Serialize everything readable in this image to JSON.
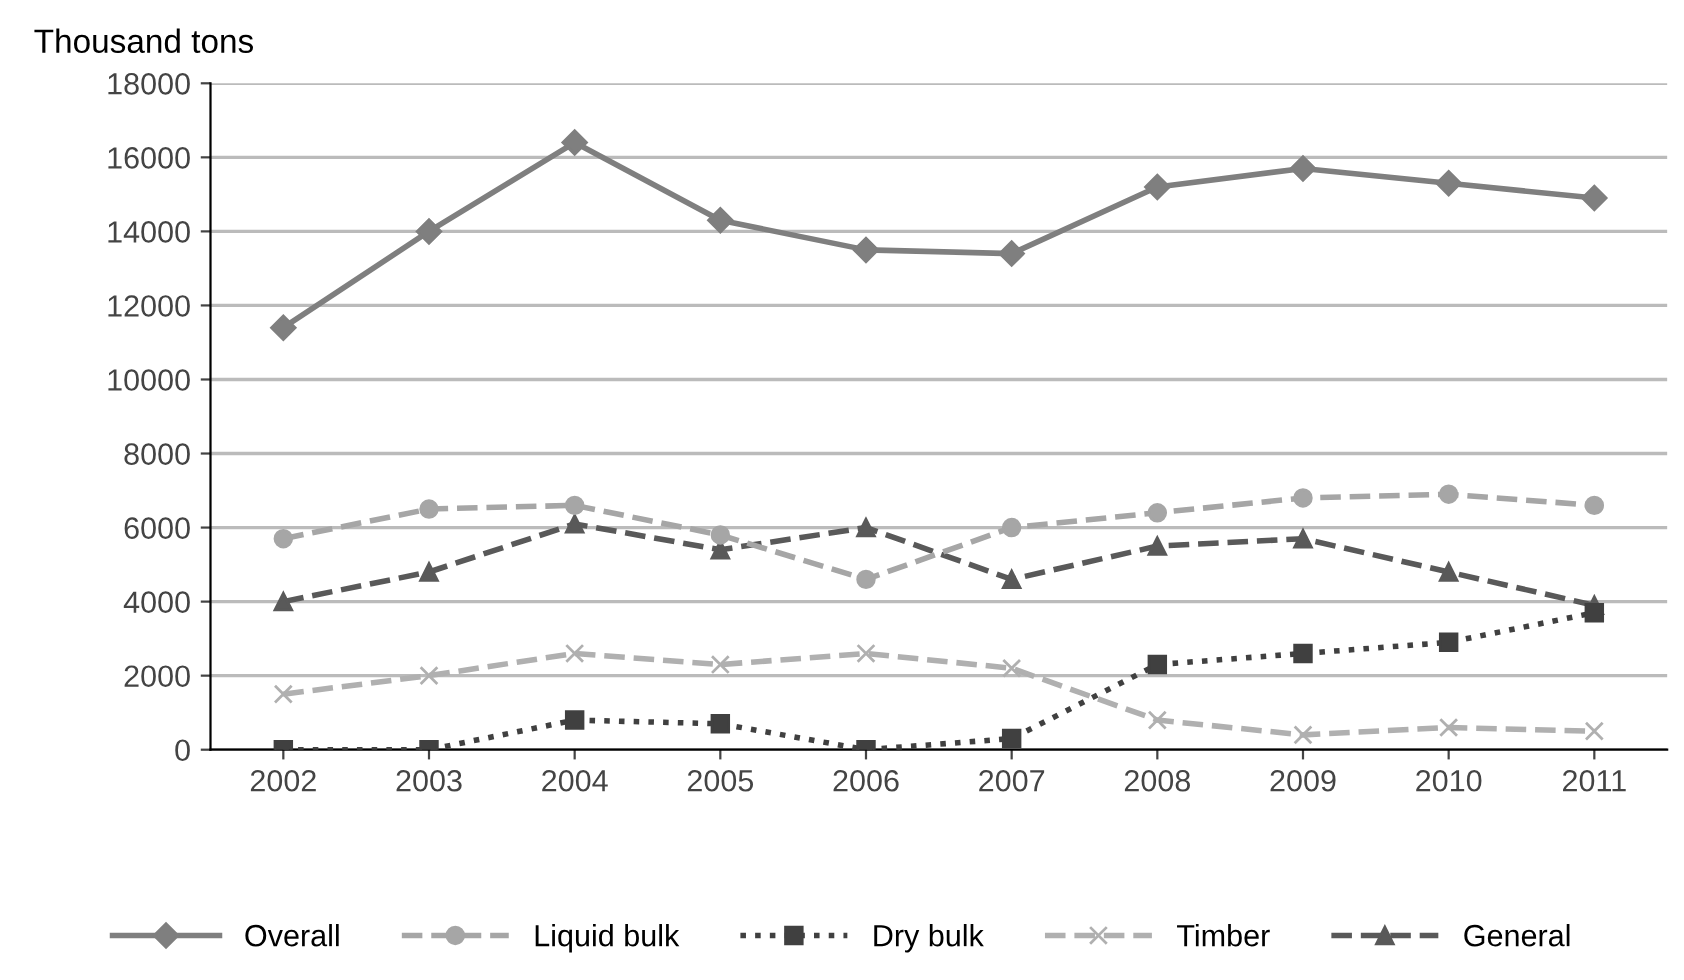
{
  "chart_data": {
    "type": "line",
    "ylabel": "Thousand tons",
    "categories": [
      "2002",
      "2003",
      "2004",
      "2005",
      "2006",
      "2007",
      "2008",
      "2009",
      "2010",
      "2011"
    ],
    "series": [
      {
        "name": "Overall",
        "color": "#7f7f7f",
        "marker": "diamond",
        "line_style": "solid",
        "values": [
          11400,
          14000,
          16400,
          14300,
          13500,
          13400,
          15200,
          15700,
          15300,
          14900
        ]
      },
      {
        "name": "Liquid bulk",
        "color": "#a6a6a6",
        "marker": "circle",
        "line_style": "dashed",
        "values": [
          5700,
          6500,
          6600,
          5800,
          4600,
          6000,
          6400,
          6800,
          6900,
          6600
        ]
      },
      {
        "name": "Dry bulk",
        "color": "#404040",
        "marker": "square",
        "line_style": "dotted",
        "values": [
          0,
          0,
          800,
          700,
          0,
          300,
          2300,
          2600,
          2900,
          3700
        ]
      },
      {
        "name": "Timber",
        "color": "#b0b0b0",
        "marker": "cross",
        "line_style": "dashed",
        "values": [
          1500,
          2000,
          2600,
          2300,
          2600,
          2200,
          800,
          400,
          600,
          500
        ]
      },
      {
        "name": "General",
        "color": "#595959",
        "marker": "triangle",
        "line_style": "dashed",
        "values": [
          4000,
          4800,
          6100,
          5400,
          6000,
          4600,
          5500,
          5700,
          4800,
          3900
        ]
      }
    ],
    "ylim": [
      0,
      18000
    ],
    "yticks": [
      0,
      2000,
      4000,
      6000,
      8000,
      10000,
      12000,
      14000,
      16000,
      18000
    ],
    "grid": "y",
    "legend": "bottom"
  }
}
